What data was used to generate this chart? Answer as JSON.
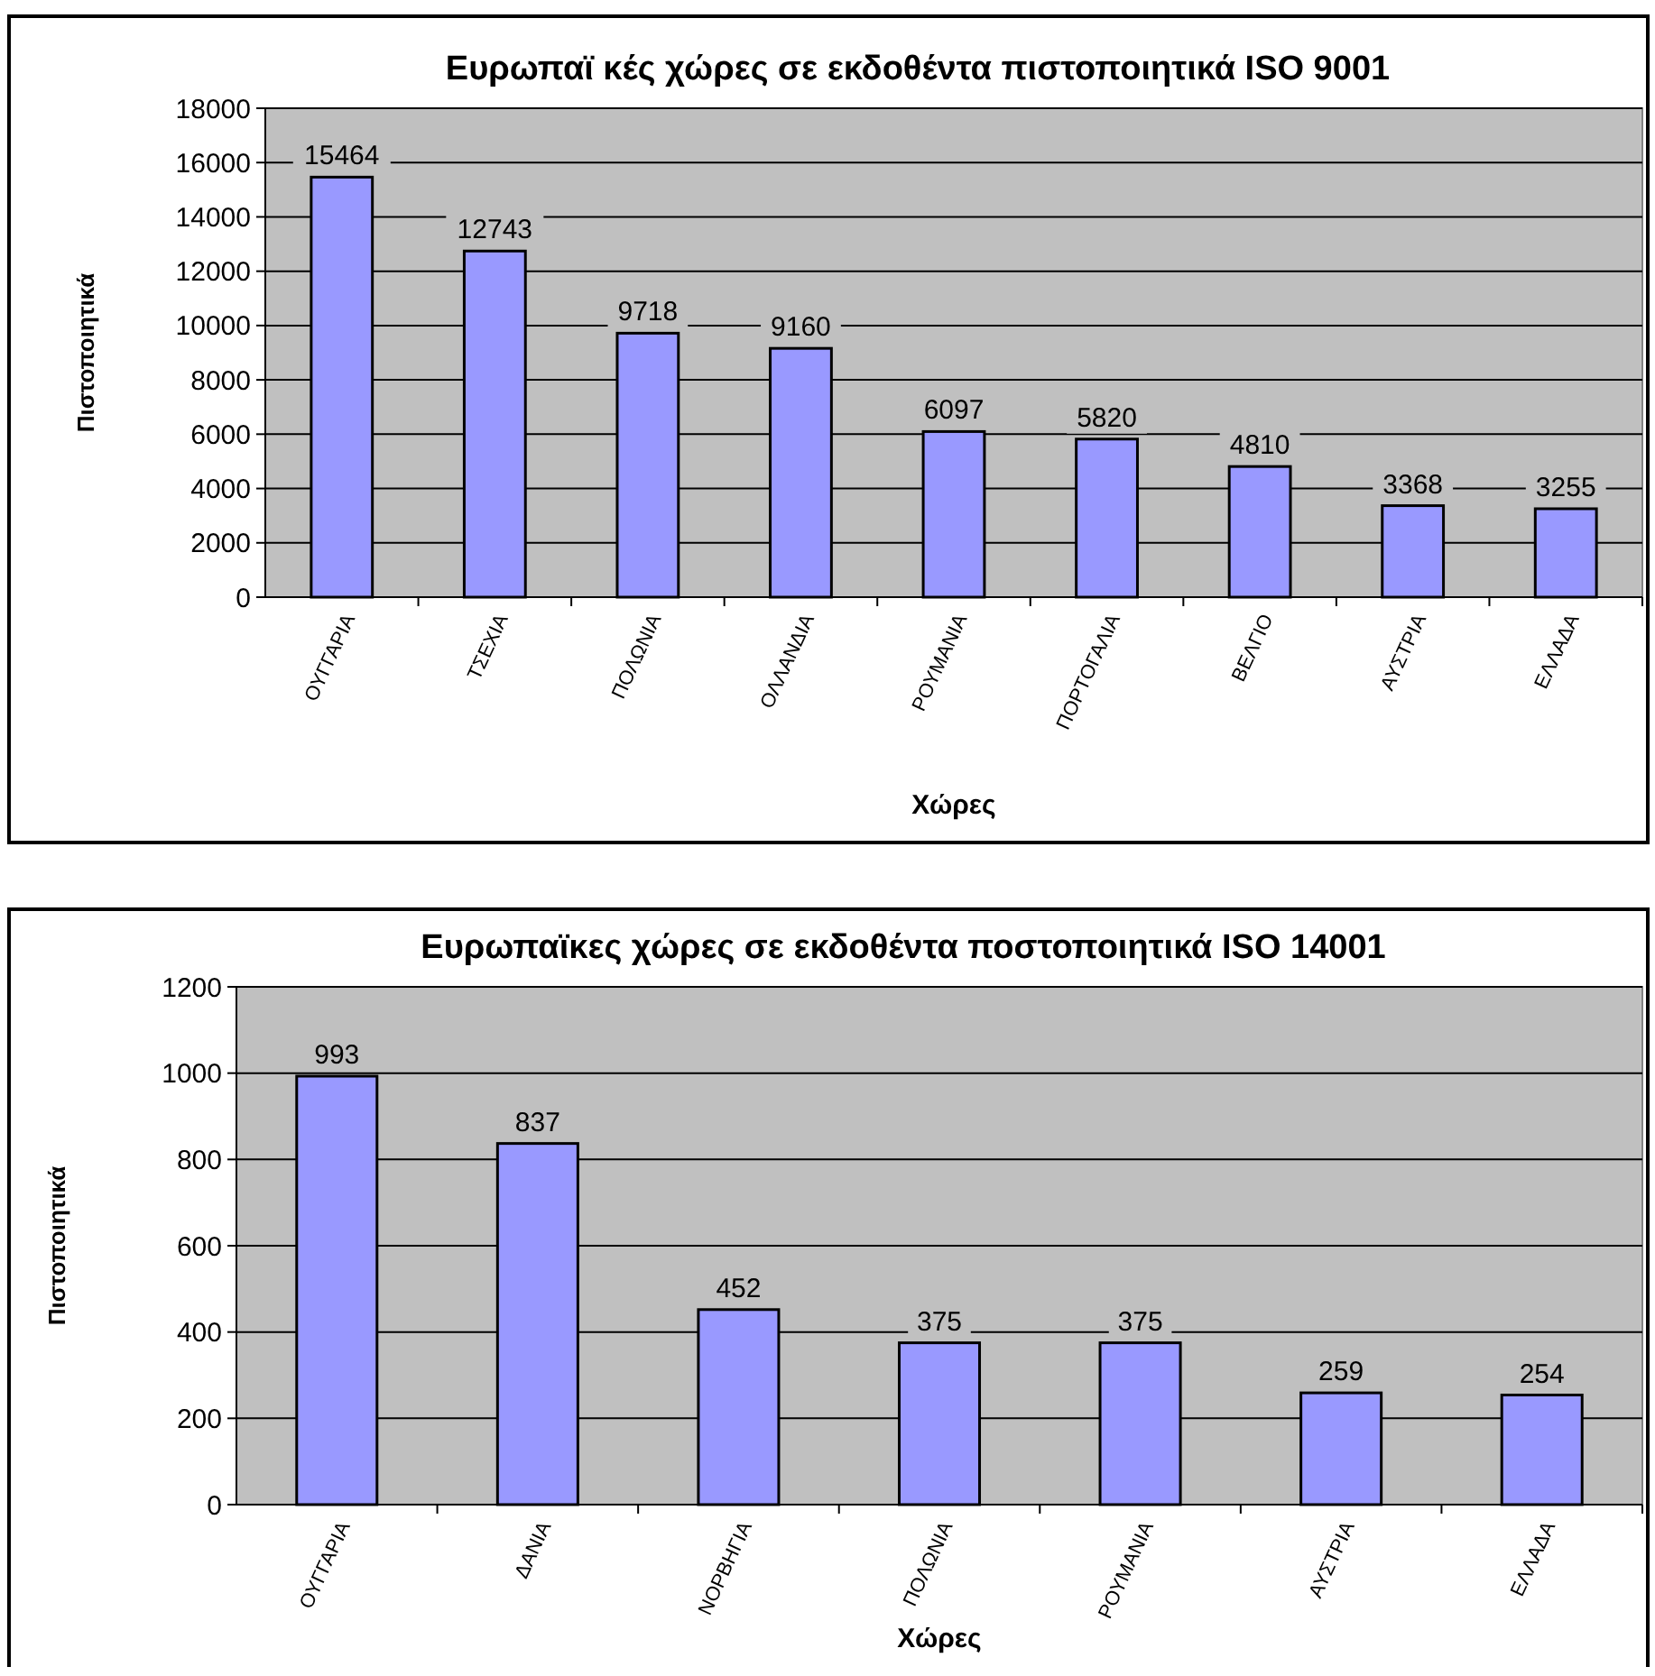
{
  "chart_data": [
    {
      "type": "bar",
      "title": "Ευρωπαϊ κές χώρες σε εκδοθέντα πιστοποιητικά ISO 9001",
      "xlabel": "Χώρες",
      "ylabel": "Πιστοποιητικά",
      "categories": [
        "ΟΥΓΓΑΡΙΑ",
        "ΤΣΕΧΙΑ",
        "ΠΟΛΩΝΙΑ",
        "ΟΛΛΑΝΔΙΑ",
        "ΡΟΥΜΑΝΙΑ",
        "ΠΟΡΤΟΓΑΛΙΑ",
        "ΒΕΛΓΙΟ",
        "ΑΥΣΤΡΙΑ",
        "ΕΛΛΑΔΑ"
      ],
      "values": [
        15464,
        12743,
        9718,
        9160,
        6097,
        5820,
        4810,
        3368,
        3255
      ],
      "color": "#9999ff",
      "ylim": [
        0,
        18000
      ],
      "yticks": [
        0,
        2000,
        4000,
        6000,
        8000,
        10000,
        12000,
        14000,
        16000,
        18000
      ],
      "grid": "y",
      "data_labels": true
    },
    {
      "type": "bar",
      "title": "Ευρωπαϊκες χώρες σε εκδοθέντα ποστοποιητικά ISO 14001",
      "xlabel": "Χώρες",
      "ylabel": "Πιστοποιητικά",
      "categories": [
        "ΟΥΓΓΑΡΙΑ",
        "ΔΑΝΙΑ",
        "ΝΟΡΒΗΓΙΑ",
        "ΠΟΛΩΝΙΑ",
        "ΡΟΥΜΑΝΙΑ",
        "ΑΥΣΤΡΙΑ",
        "ΕΛΛΑΔΑ"
      ],
      "values": [
        993,
        837,
        452,
        375,
        375,
        259,
        254
      ],
      "color": "#9999ff",
      "ylim": [
        0,
        1200
      ],
      "yticks": [
        0,
        200,
        400,
        600,
        800,
        1000,
        1200
      ],
      "grid": "y",
      "data_labels": true
    }
  ]
}
